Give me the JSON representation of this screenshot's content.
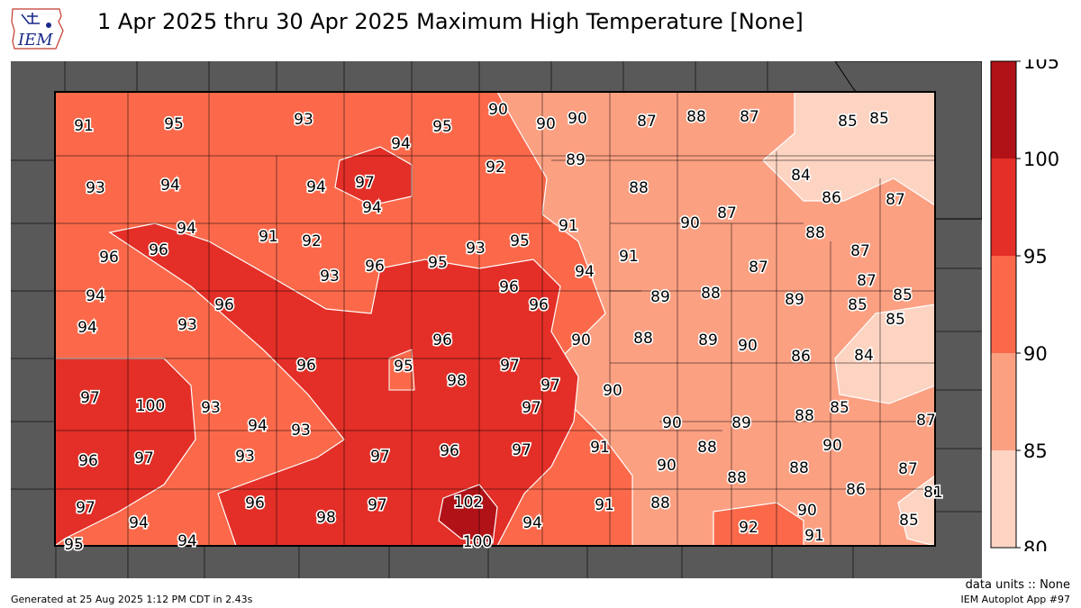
{
  "title": "1 Apr 2025 thru 30 Apr 2025 Maximum High Temperature [None]",
  "logo_text": "IEM",
  "footer": {
    "units": "data units :: None",
    "app": "IEM Autoplot App #97",
    "generated": "Generated at 25 Aug 2025 1:12 PM CDT in 2.43s"
  },
  "colorbar": {
    "ticks": [
      "80",
      "85",
      "90",
      "95",
      "100",
      "105"
    ],
    "bins": [
      {
        "from": 80,
        "to": 85,
        "color": "#fdd4c2"
      },
      {
        "from": 85,
        "to": 90,
        "color": "#fca082"
      },
      {
        "from": 90,
        "to": 95,
        "color": "#fb694a"
      },
      {
        "from": 95,
        "to": 100,
        "color": "#e32f27"
      },
      {
        "from": 100,
        "to": 105,
        "color": "#b11218"
      }
    ]
  },
  "station_values": [
    "91",
    "95",
    "93",
    "95",
    "90",
    "90",
    "90",
    "87",
    "88",
    "87",
    "85",
    "85",
    "94",
    "93",
    "94",
    "94",
    "97",
    "92",
    "89",
    "84",
    "88",
    "86",
    "87",
    "94",
    "96",
    "94",
    "96",
    "91",
    "92",
    "93",
    "95",
    "91",
    "90",
    "87",
    "88",
    "87",
    "93",
    "96",
    "95",
    "91",
    "94",
    "96",
    "87",
    "87",
    "96",
    "94",
    "96",
    "89",
    "88",
    "85",
    "89",
    "85",
    "94",
    "93",
    "96",
    "90",
    "88",
    "89",
    "90",
    "84",
    "86",
    "85",
    "96",
    "95",
    "97",
    "97",
    "98",
    "97",
    "100",
    "93",
    "90",
    "94",
    "93",
    "97",
    "90",
    "88",
    "89",
    "85",
    "87",
    "96",
    "97",
    "93",
    "97",
    "96",
    "97",
    "91",
    "88",
    "90",
    "90",
    "88",
    "87",
    "88",
    "86",
    "81",
    "97",
    "96",
    "98",
    "97",
    "102",
    "94",
    "91",
    "88",
    "92",
    "90",
    "85",
    "94",
    "95",
    "100",
    "91"
  ]
}
